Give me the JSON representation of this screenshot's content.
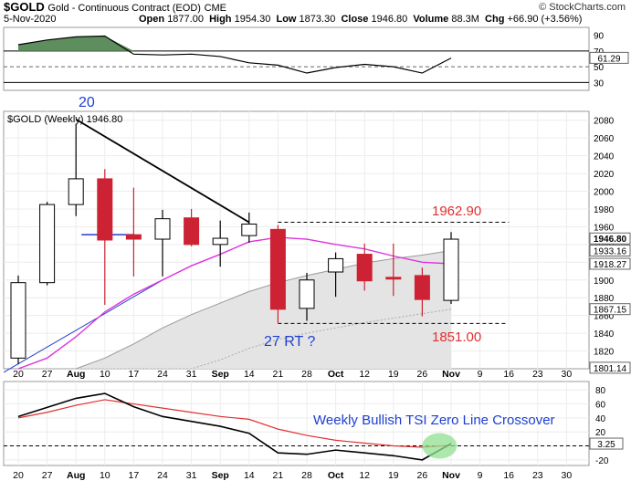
{
  "header": {
    "symbol": "$GOLD",
    "name": "Gold - Continuous Contract (EOD)",
    "exchange": "CME",
    "date": "5-Nov-2020",
    "open_label": "Open",
    "open": "1877.00",
    "high_label": "High",
    "high": "1954.30",
    "low_label": "Low",
    "low": "1873.30",
    "close_label": "Close",
    "close": "1946.80",
    "volume_label": "Volume",
    "volume": "88.3M",
    "chg_label": "Chg",
    "chg": "+66.90 (+3.56%)",
    "watermark": "© StockCharts.com"
  },
  "colors": {
    "up": "#ffffff",
    "down": "#cc2233",
    "ema_short": "#dd33dd",
    "tsi": "#000000",
    "signal": "#e03030",
    "annotation_blue": "#1f3fd0",
    "annotation_red": "#e03030",
    "highlight_green": "#90e090"
  },
  "chart_data": [
    {
      "type": "line",
      "panel": "upper indicator",
      "y_ticks": [
        30,
        50,
        70,
        90
      ],
      "ylim": [
        20,
        100
      ],
      "current_label": "61.29",
      "levels": [
        30,
        50,
        70
      ],
      "x_index": [
        0,
        1,
        2,
        3,
        4,
        5,
        6,
        7,
        8,
        9,
        10,
        11,
        12,
        13,
        14,
        15
      ],
      "values": [
        78,
        84,
        88,
        89,
        66,
        65,
        66,
        63,
        55,
        52,
        42,
        49,
        53,
        50,
        42,
        61
      ]
    },
    {
      "type": "candlestick",
      "panel": "price",
      "title": "$GOLD (Weekly) 1946.80",
      "x_tick_labels": [
        "20",
        "27",
        "Aug",
        "10",
        "17",
        "24",
        "31",
        "Sep",
        "14",
        "21",
        "28",
        "Oct",
        "12",
        "19",
        "26",
        "Nov",
        "9",
        "16",
        "23",
        "30"
      ],
      "y_ticks": [
        1820,
        1840,
        1860,
        1880,
        1900,
        1920,
        1940,
        1960,
        1980,
        2000,
        2020,
        2040,
        2060,
        2080
      ],
      "ylim": [
        1800,
        2090
      ],
      "candles": [
        {
          "x": "20",
          "open": 1812,
          "high": 1905,
          "low": 1805,
          "close": 1897
        },
        {
          "x": "27",
          "open": 1897,
          "high": 1988,
          "low": 1894,
          "close": 1985
        },
        {
          "x": "Aug",
          "open": 1985,
          "high": 2076,
          "low": 1972,
          "close": 2014
        },
        {
          "x": "10",
          "open": 2014,
          "high": 2025,
          "low": 1872,
          "close": 1945
        },
        {
          "x": "17",
          "open": 1951,
          "high": 2004,
          "low": 1904,
          "close": 1946
        },
        {
          "x": "24",
          "open": 1946,
          "high": 1979,
          "low": 1904,
          "close": 1969
        },
        {
          "x": "31",
          "open": 1970,
          "high": 1980,
          "low": 1938,
          "close": 1940
        },
        {
          "x": "Sep",
          "open": 1940,
          "high": 1967,
          "low": 1915,
          "close": 1947
        },
        {
          "x": "14",
          "open": 1950,
          "high": 1976,
          "low": 1942,
          "close": 1963
        },
        {
          "x": "21",
          "open": 1957,
          "high": 1962,
          "low": 1851,
          "close": 1867
        },
        {
          "x": "28",
          "open": 1868,
          "high": 1908,
          "low": 1854,
          "close": 1900
        },
        {
          "x": "Oct",
          "open": 1909,
          "high": 1931,
          "low": 1881,
          "close": 1924
        },
        {
          "x": "12",
          "open": 1929,
          "high": 1941,
          "low": 1888,
          "close": 1899
        },
        {
          "x": "19",
          "open": 1903,
          "high": 1941,
          "low": 1882,
          "close": 1901
        },
        {
          "x": "26",
          "open": 1905,
          "high": 1914,
          "low": 1859,
          "close": 1878
        },
        {
          "x": "Nov",
          "open": 1877,
          "high": 1954,
          "low": 1873,
          "close": 1946
        }
      ],
      "ema_short": [
        1796,
        1812,
        1836,
        1864,
        1884,
        1900,
        1916,
        1929,
        1943,
        1948,
        1946,
        1940,
        1935,
        1927,
        1920,
        1918.27
      ],
      "ema_long_area": [
        1752,
        1768,
        1790,
        1812,
        1828,
        1846,
        1861,
        1874,
        1887,
        1897,
        1905,
        1912,
        1919,
        1924,
        1928,
        1933.16
      ],
      "lower_band": [
        1700,
        1715,
        1735,
        1755,
        1770,
        1785,
        1798,
        1810,
        1823,
        1833,
        1840,
        1846,
        1852,
        1857,
        1862,
        1867.15
      ],
      "price_labels": [
        "1946.80",
        "1933.16",
        "1918.27",
        "1867.15",
        "1801.14"
      ],
      "annotations": {
        "label_20": "20",
        "label_rt": "27 RT ?",
        "resistance_value": "1962.90",
        "support_value": "1851.00"
      }
    },
    {
      "type": "line",
      "panel": "TSI",
      "y_ticks": [
        -20,
        0,
        20,
        40,
        60,
        80
      ],
      "ylim": [
        -28,
        92
      ],
      "current_label": "3.25",
      "x_tick_labels": [
        "20",
        "27",
        "Aug",
        "10",
        "17",
        "24",
        "31",
        "Sep",
        "14",
        "21",
        "28",
        "Oct",
        "12",
        "19",
        "26",
        "Nov",
        "9",
        "16",
        "23",
        "30"
      ],
      "tsi": [
        42,
        55,
        68,
        75,
        56,
        42,
        35,
        28,
        18,
        -10,
        -12,
        -6,
        -10,
        -14,
        -20,
        3.25
      ],
      "signal": [
        40,
        48,
        58,
        66,
        60,
        54,
        48,
        42,
        38,
        24,
        15,
        8,
        4,
        0,
        -2,
        1
      ],
      "annotation": "Weekly Bullish TSI Zero Line Crossover"
    }
  ]
}
